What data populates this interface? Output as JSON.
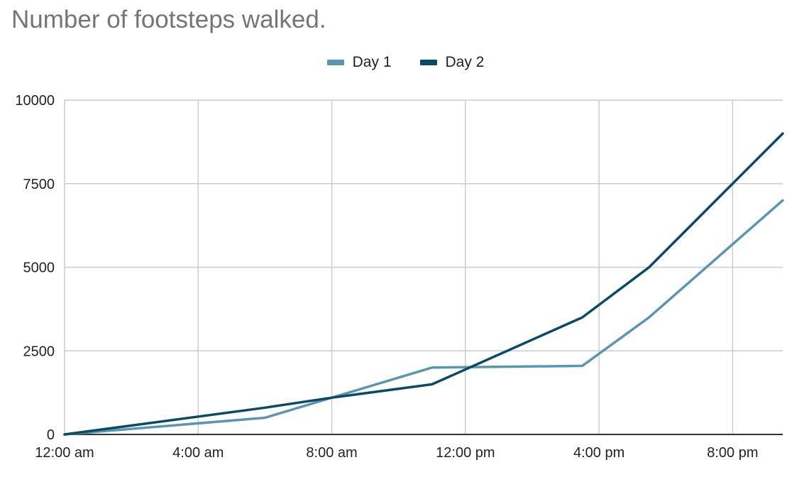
{
  "chart_data": {
    "type": "line",
    "title": "Number of footsteps walked.",
    "xlabel": "",
    "ylabel": "",
    "x_ticks": [
      {
        "label": "12:00 am",
        "hour": 0
      },
      {
        "label": "4:00 am",
        "hour": 4
      },
      {
        "label": "8:00 am",
        "hour": 8
      },
      {
        "label": "12:00 pm",
        "hour": 12
      },
      {
        "label": "4:00 pm",
        "hour": 16
      },
      {
        "label": "8:00 pm",
        "hour": 20
      }
    ],
    "xlim": [
      0,
      21.5
    ],
    "y_ticks": [
      "0",
      "2500",
      "5000",
      "7500",
      "10000"
    ],
    "ylim": [
      0,
      10000
    ],
    "grid": true,
    "legend_position": "top",
    "series": [
      {
        "name": "Day 1",
        "color": "#5b95b0",
        "points": [
          {
            "x": 0,
            "y": 0
          },
          {
            "x": 6,
            "y": 500
          },
          {
            "x": 8,
            "y": 1100
          },
          {
            "x": 11,
            "y": 2000
          },
          {
            "x": 15.5,
            "y": 2050
          },
          {
            "x": 17.5,
            "y": 3500
          },
          {
            "x": 21.5,
            "y": 7000
          }
        ]
      },
      {
        "name": "Day 2",
        "color": "#0b4a66",
        "points": [
          {
            "x": 0,
            "y": 0
          },
          {
            "x": 6,
            "y": 800
          },
          {
            "x": 8,
            "y": 1100
          },
          {
            "x": 11,
            "y": 1500
          },
          {
            "x": 15.5,
            "y": 3500
          },
          {
            "x": 17.5,
            "y": 5000
          },
          {
            "x": 21.5,
            "y": 9000
          }
        ]
      }
    ]
  }
}
